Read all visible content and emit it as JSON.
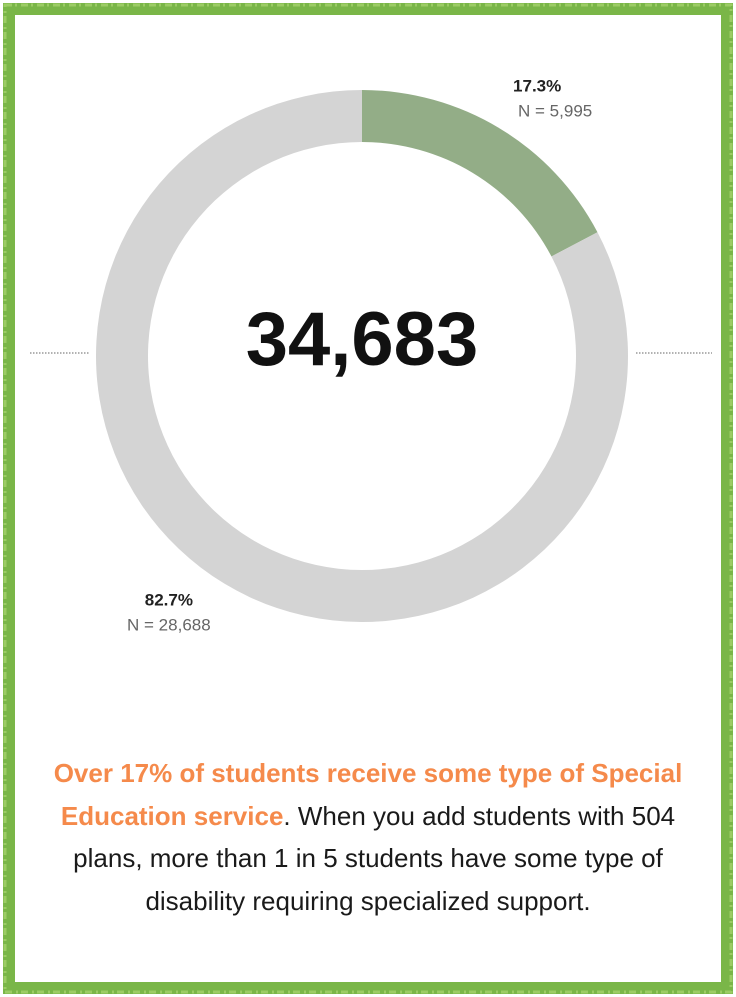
{
  "chart_data": {
    "type": "pie",
    "donut": true,
    "values": [
      17.3,
      82.7
    ],
    "value_labels": [
      "17.3%",
      "82.7%"
    ],
    "count_labels": [
      "N = 5,995",
      "N = 28,688"
    ],
    "colors": [
      "#93ad87",
      "#d4d4d4"
    ],
    "center_label": "34,683"
  },
  "caption": {
    "highlight": "Over 17% of students receive some type of Special Education service",
    "text": ". When you add students with 504 plans, more than 1 in 5 students have some type of disability requiring specialized support."
  }
}
